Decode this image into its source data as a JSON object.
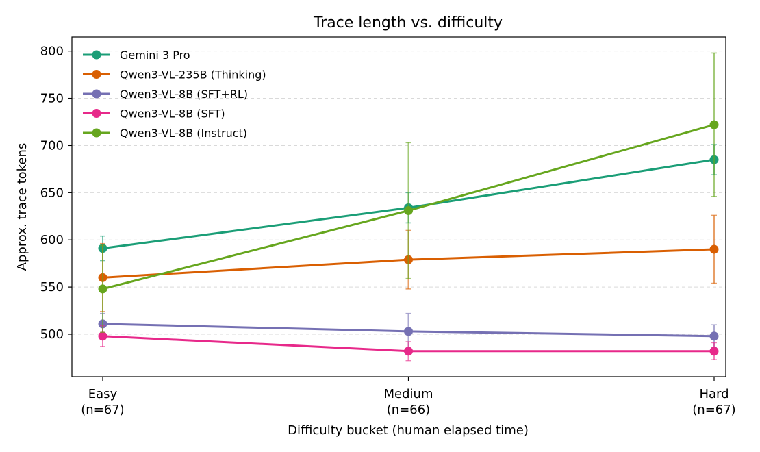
{
  "chart_data": {
    "type": "line",
    "title": "Trace length vs. difficulty",
    "xlabel": "Difficulty bucket (human elapsed time)",
    "ylabel": "Approx. trace tokens",
    "categories": [
      {
        "name": "Easy",
        "n": "(n=67)"
      },
      {
        "name": "Medium",
        "n": "(n=66)"
      },
      {
        "name": "Hard",
        "n": "(n=67)"
      }
    ],
    "ylim": [
      455,
      815
    ],
    "yticks": [
      500,
      550,
      600,
      650,
      700,
      750,
      800
    ],
    "grid": true,
    "legend_position": "top-left",
    "series": [
      {
        "name": "Gemini 3 Pro",
        "color": "#1b9e77",
        "values": [
          591,
          634,
          685
        ],
        "err": [
          13,
          16,
          16
        ]
      },
      {
        "name": "Qwen3-VL-235B (Thinking)",
        "color": "#d95f02",
        "values": [
          560,
          579,
          590
        ],
        "err": [
          36,
          31,
          36
        ]
      },
      {
        "name": "Qwen3-VL-8B (SFT+RL)",
        "color": "#7570b3",
        "values": [
          511,
          503,
          498
        ],
        "err": [
          11,
          19,
          12
        ]
      },
      {
        "name": "Qwen3-VL-8B (SFT)",
        "color": "#e7298a",
        "values": [
          498,
          482,
          482
        ],
        "err": [
          11,
          10,
          9
        ]
      },
      {
        "name": "Qwen3-VL-8B (Instruct)",
        "color": "#66a61e",
        "values": [
          548,
          631,
          722
        ],
        "err": [
          46,
          72,
          76
        ]
      }
    ]
  }
}
